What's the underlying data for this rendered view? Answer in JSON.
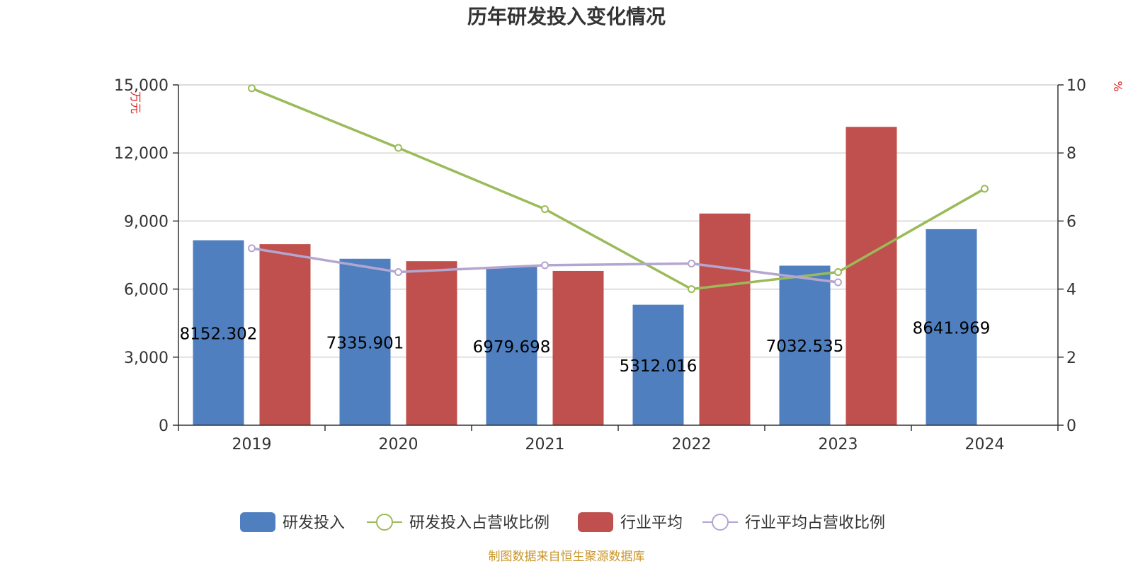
{
  "chart_data": {
    "type": "bar",
    "title": "历年研发投入变化情况",
    "categories": [
      "2019",
      "2020",
      "2021",
      "2022",
      "2023",
      "2024"
    ],
    "left_axis": {
      "unit": "万元",
      "ylim": [
        0,
        15000
      ],
      "ticks": [
        0,
        3000,
        6000,
        9000,
        12000,
        15000
      ],
      "tick_labels": [
        "0",
        "3,000",
        "6,000",
        "9,000",
        "12,000",
        "15,000"
      ]
    },
    "right_axis": {
      "unit": "%",
      "ylim": [
        0,
        10
      ],
      "ticks": [
        0,
        2,
        4,
        6,
        8,
        10
      ],
      "tick_labels": [
        "0",
        "2",
        "4",
        "6",
        "8",
        "10"
      ]
    },
    "grid": true,
    "legend_position": "bottom",
    "series": [
      {
        "name": "研发投入",
        "kind": "bar",
        "axis": "left",
        "color": "#4f7fbf",
        "values": [
          8152.302,
          7335.901,
          6979.698,
          5312.016,
          7032.535,
          8641.969
        ],
        "labels": [
          "8152.302",
          "7335.901",
          "6979.698",
          "5312.016",
          "7032.535",
          "8641.969"
        ]
      },
      {
        "name": "研发投入占营收比例",
        "kind": "line",
        "axis": "right",
        "color": "#9bbb59",
        "values": [
          9.9,
          8.15,
          6.35,
          4.0,
          4.5,
          6.95
        ]
      },
      {
        "name": "行业平均",
        "kind": "bar",
        "axis": "left",
        "color": "#c0504d",
        "values": [
          7980,
          7230,
          6800,
          9330,
          13150,
          null
        ]
      },
      {
        "name": "行业平均占营收比例",
        "kind": "line",
        "axis": "right",
        "color": "#b3a6d0",
        "values": [
          5.2,
          4.5,
          4.7,
          4.75,
          4.2,
          null
        ]
      }
    ],
    "source": "制图数据来自恒生聚源数据库"
  }
}
